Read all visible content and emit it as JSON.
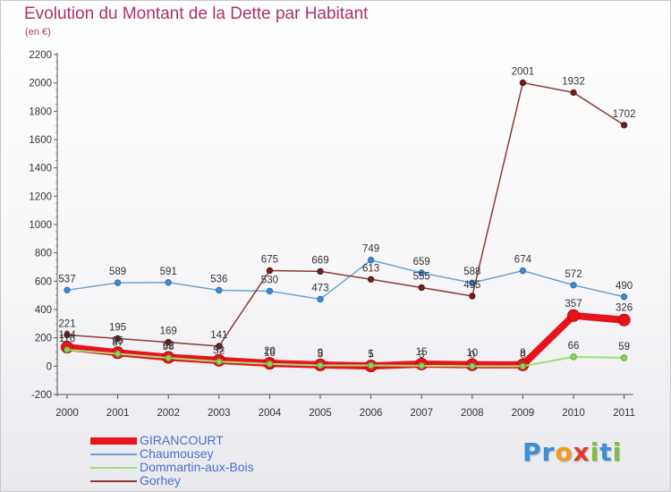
{
  "title": "Evolution du Montant de la Dette par Habitant",
  "unit": "(en €)",
  "logo": {
    "text": "Proxiti",
    "letters": [
      {
        "ch": "P",
        "color": "#3a8fd6"
      },
      {
        "ch": "r",
        "color": "#3a8fd6"
      },
      {
        "ch": "o",
        "color": "#f29a1c"
      },
      {
        "ch": "x",
        "color": "#e23b2b"
      },
      {
        "ch": "i",
        "color": "#79c043"
      },
      {
        "ch": "t",
        "color": "#3a8fd6"
      },
      {
        "ch": "i",
        "color": "#79c043"
      }
    ]
  },
  "chart_data": {
    "type": "line",
    "x": [
      "2000",
      "2001",
      "2002",
      "2003",
      "2004",
      "2005",
      "2006",
      "2007",
      "2008",
      "2009",
      "2010",
      "2011"
    ],
    "ylim": [
      -200,
      2200
    ],
    "yticks": [
      -200,
      0,
      200,
      400,
      600,
      800,
      1000,
      1200,
      1400,
      1600,
      1800,
      2000,
      2200
    ],
    "grid": false,
    "legend": "bottom-left",
    "series": [
      {
        "name": "GIRANCOURT",
        "color": "#e8141c",
        "values": [
          134,
          95,
          62,
          41,
          20,
          9,
          1,
          15,
          10,
          9,
          357,
          326
        ],
        "labels": [
          "134",
          "95",
          "62",
          "41",
          "20",
          "9",
          "1",
          "15",
          "10",
          "9",
          "357",
          "326"
        ]
      },
      {
        "name": "Chaumousey",
        "color": "#6aa3d5",
        "values": [
          537,
          589,
          591,
          536,
          530,
          473,
          749,
          659,
          588,
          674,
          572,
          490
        ],
        "labels": [
          "537",
          "589",
          "591",
          "536",
          "530",
          "473",
          "749",
          "659",
          "588",
          "674",
          "572",
          "490"
        ]
      },
      {
        "name": "Dommartin-aux-Bois",
        "color": "#9ee07a",
        "values": [
          116,
          87,
          58,
          32,
          16,
          5,
          5,
          3,
          0,
          0,
          66,
          59
        ],
        "labels": [
          "116",
          "87",
          "58",
          "32",
          "16",
          "5",
          "5",
          "3",
          "0",
          "0",
          "66",
          "59"
        ]
      },
      {
        "name": "Gorhey",
        "color": "#8b3a3a",
        "values": [
          221,
          195,
          169,
          141,
          675,
          669,
          613,
          555,
          495,
          2001,
          1932,
          1702
        ],
        "labels": [
          "221",
          "195",
          "169",
          "141",
          "675",
          "669",
          "613",
          "555",
          "495",
          "2001",
          "1932",
          "1702"
        ]
      }
    ]
  }
}
